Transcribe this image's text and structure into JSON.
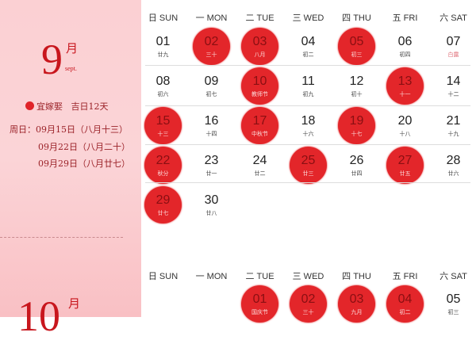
{
  "colors": {
    "accent": "#e3262a",
    "panel": "#fbd0d3",
    "text": "#c8161d"
  },
  "sept": {
    "month_num": "9",
    "month_char": "月",
    "month_en": "sept.",
    "legend_icon": "red-dot",
    "legend_label": "宜嫁娶",
    "lucky_days": "吉日12天",
    "sundays_label": "周日：",
    "sundays": [
      "09月15日（八月十三）",
      "09月22日（八月二十）",
      "09月29日（八月廿七）"
    ]
  },
  "oct": {
    "month_num": "10",
    "month_char": "月"
  },
  "weekdays": [
    "日 SUN",
    "一 MON",
    "二 TUE",
    "三 WED",
    "四 THU",
    "五 FRI",
    "六 SAT"
  ],
  "sept_days": [
    {
      "d": "01",
      "l": "廿九",
      "hl": false
    },
    {
      "d": "02",
      "l": "三十",
      "hl": true
    },
    {
      "d": "03",
      "l": "八月",
      "hl": true
    },
    {
      "d": "04",
      "l": "初二",
      "hl": false
    },
    {
      "d": "05",
      "l": "初三",
      "hl": true
    },
    {
      "d": "06",
      "l": "初四",
      "hl": false
    },
    {
      "d": "07",
      "l": "白露",
      "hl": false,
      "red": true
    },
    {
      "d": "08",
      "l": "初六",
      "hl": false
    },
    {
      "d": "09",
      "l": "初七",
      "hl": false
    },
    {
      "d": "10",
      "l": "教师节",
      "hl": true
    },
    {
      "d": "11",
      "l": "初九",
      "hl": false
    },
    {
      "d": "12",
      "l": "初十",
      "hl": false
    },
    {
      "d": "13",
      "l": "十一",
      "hl": true
    },
    {
      "d": "14",
      "l": "十二",
      "hl": false
    },
    {
      "d": "15",
      "l": "十三",
      "hl": true
    },
    {
      "d": "16",
      "l": "十四",
      "hl": false
    },
    {
      "d": "17",
      "l": "中秋节",
      "hl": true
    },
    {
      "d": "18",
      "l": "十六",
      "hl": false
    },
    {
      "d": "19",
      "l": "十七",
      "hl": true
    },
    {
      "d": "20",
      "l": "十八",
      "hl": false
    },
    {
      "d": "21",
      "l": "十九",
      "hl": false
    },
    {
      "d": "22",
      "l": "秋分",
      "hl": true
    },
    {
      "d": "23",
      "l": "廿一",
      "hl": false
    },
    {
      "d": "24",
      "l": "廿二",
      "hl": false
    },
    {
      "d": "25",
      "l": "廿三",
      "hl": true
    },
    {
      "d": "26",
      "l": "廿四",
      "hl": false
    },
    {
      "d": "27",
      "l": "廿五",
      "hl": true
    },
    {
      "d": "28",
      "l": "廿六",
      "hl": false
    },
    {
      "d": "29",
      "l": "廿七",
      "hl": true
    },
    {
      "d": "30",
      "l": "廿八",
      "hl": false
    }
  ],
  "oct_days": [
    {
      "d": "01",
      "l": "国庆节",
      "hl": true
    },
    {
      "d": "02",
      "l": "三十",
      "hl": true
    },
    {
      "d": "03",
      "l": "九月",
      "hl": true
    },
    {
      "d": "04",
      "l": "初二",
      "hl": true
    },
    {
      "d": "05",
      "l": "初三",
      "hl": false
    }
  ]
}
